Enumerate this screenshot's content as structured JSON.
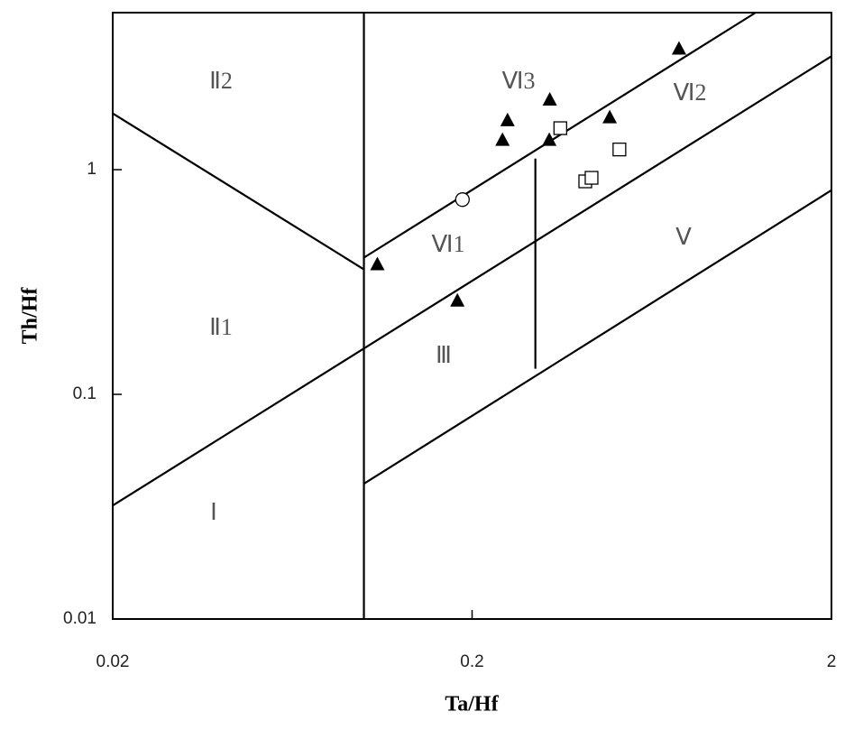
{
  "chart_data": {
    "type": "scatter",
    "x_label": "Ta/Hf",
    "y_label": "Th/Hf",
    "log_x": true,
    "log_y": true,
    "xlim": [
      0.02,
      2
    ],
    "ylim": [
      0.01,
      5
    ],
    "xticks": [
      0.02,
      0.2,
      2
    ],
    "yticks": [
      0.01,
      0.1,
      1
    ],
    "series": [
      {
        "marker": "triangle",
        "color": "#000000",
        "x": [
          0.109,
          0.182,
          0.243,
          0.251,
          0.328,
          0.329,
          0.483,
          0.753
        ],
        "values": [
          0.377,
          0.26,
          1.35,
          1.65,
          1.35,
          2.04,
          1.7,
          3.44
        ]
      },
      {
        "marker": "square",
        "color": "#000000",
        "x": [
          0.352,
          0.413,
          0.43,
          0.514
        ],
        "values": [
          1.53,
          0.887,
          0.92,
          1.23
        ]
      },
      {
        "marker": "circle",
        "color": "#000000",
        "x": [
          0.188
        ],
        "values": [
          0.736
        ]
      }
    ],
    "boundaries": [
      {
        "x": [
          0.1,
          0.1
        ],
        "values": [
          0.01,
          5
        ]
      },
      {
        "x": [
          0.02,
          0.1
        ],
        "values": [
          1.78,
          0.36
        ]
      },
      {
        "x": [
          0.02,
          2
        ],
        "values": [
          0.032,
          3.2
        ]
      },
      {
        "x": [
          0.1,
          1.23
        ],
        "values": [
          0.406,
          5
        ]
      },
      {
        "x": [
          0.1,
          2
        ],
        "values": [
          0.04,
          0.81
        ]
      },
      {
        "x": [
          0.3,
          0.3
        ],
        "values": [
          0.13,
          1.12
        ]
      }
    ],
    "region_labels": [
      "Ⅱ2",
      "Ⅵ3",
      "Ⅵ2",
      "Ⅵ1",
      "Ⅴ",
      "Ⅱ1",
      "Ⅲ",
      "Ⅰ"
    ]
  }
}
